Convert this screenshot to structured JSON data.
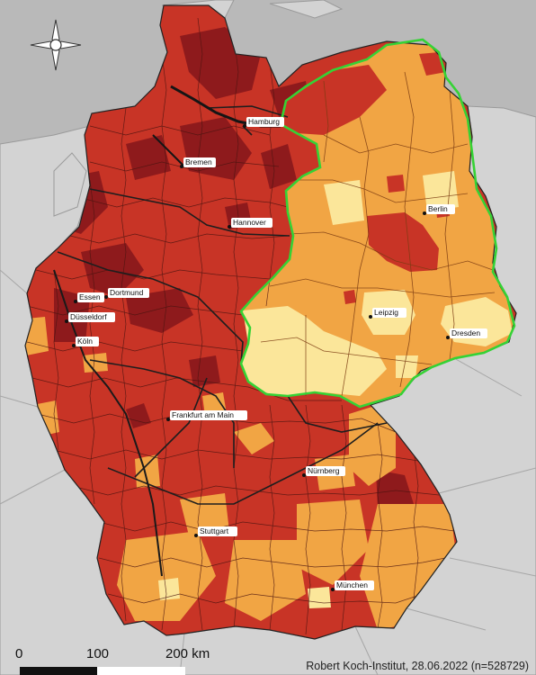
{
  "map": {
    "colors": {
      "sea": "#b9b9b9",
      "neighbor_land": "#d3d3d3",
      "darkred": "#8e1a1c",
      "red": "#c83426",
      "orange": "#f1a544",
      "lightyellow": "#fbe69a",
      "east_outline": "#35d235"
    },
    "compass_icon": "compass-rose-icon",
    "cities": [
      {
        "id": "hamburg",
        "name": "Hamburg"
      },
      {
        "id": "bremen",
        "name": "Bremen"
      },
      {
        "id": "hannover",
        "name": "Hannover"
      },
      {
        "id": "berlin",
        "name": "Berlin"
      },
      {
        "id": "essen",
        "name": "Essen"
      },
      {
        "id": "dortmund",
        "name": "Dortmund"
      },
      {
        "id": "duesseldorf",
        "name": "Düsseldorf"
      },
      {
        "id": "koeln",
        "name": "Köln"
      },
      {
        "id": "leipzig",
        "name": "Leipzig"
      },
      {
        "id": "dresden",
        "name": "Dresden"
      },
      {
        "id": "frankfurt",
        "name": "Frankfurt am Main"
      },
      {
        "id": "nuernberg",
        "name": "Nürnberg"
      },
      {
        "id": "stuttgart",
        "name": "Stuttgart"
      },
      {
        "id": "muenchen",
        "name": "München"
      }
    ],
    "scale_bar": {
      "labels": [
        "0",
        "100",
        "200 km"
      ]
    },
    "credit": "Robert Koch-Institut, 28.06.2022 (n=528729)"
  }
}
